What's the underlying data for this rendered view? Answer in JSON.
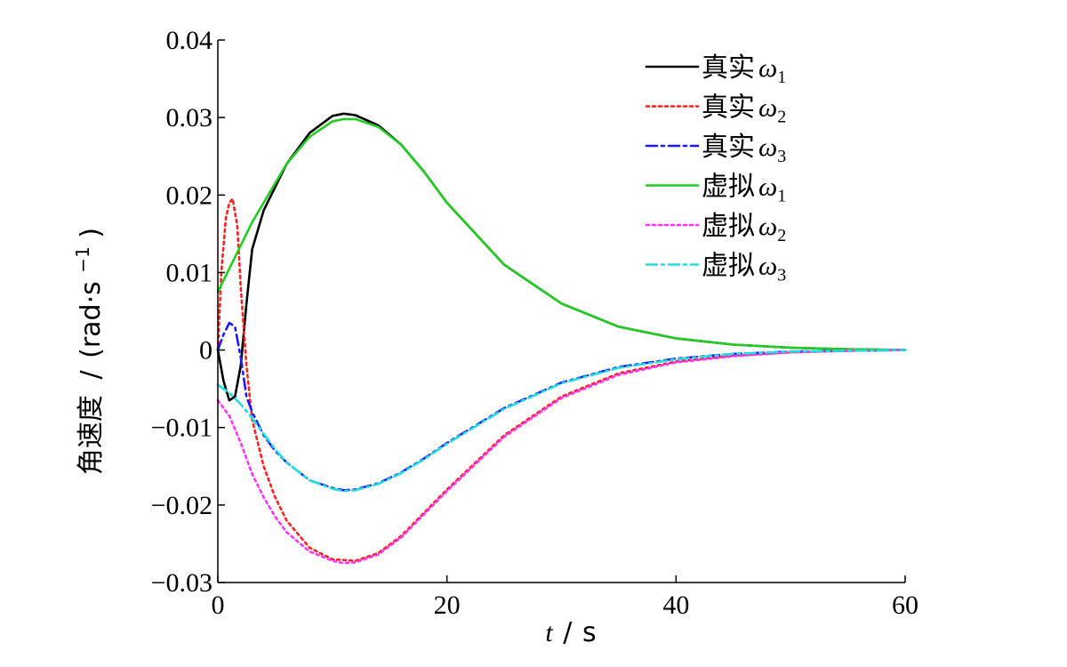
{
  "chart_data": {
    "type": "line",
    "xlabel": {
      "var": "t",
      "unit": "s"
    },
    "ylabel": {
      "main": "角速度",
      "unit": "(rad·s",
      "exp": "−1",
      "close": ")"
    },
    "xlim": [
      0,
      60
    ],
    "ylim": [
      -0.03,
      0.04
    ],
    "x_ticks": [
      0,
      20,
      40,
      60
    ],
    "x_tick_labels": [
      "0",
      "20",
      "40",
      "60"
    ],
    "y_ticks": [
      -0.03,
      -0.02,
      -0.01,
      0,
      0.01,
      0.02,
      0.03,
      0.04
    ],
    "y_tick_labels": [
      "−0.03",
      "−0.02",
      "−0.01",
      "0",
      "0.01",
      "0.02",
      "0.03",
      "0.04"
    ],
    "grid": false,
    "legend_position": "top-right",
    "series": [
      {
        "name": "真实",
        "symbol": "ω",
        "sub": "1",
        "color": "#000000",
        "dash": "solid",
        "x": [
          0,
          0.5,
          1,
          1.5,
          2,
          2.5,
          3,
          4,
          5,
          6,
          8,
          10,
          11,
          12,
          14,
          16,
          18,
          20,
          25,
          30,
          35,
          40,
          45,
          50,
          55,
          60
        ],
        "y": [
          0,
          -0.004,
          -0.0065,
          -0.006,
          -0.002,
          0.006,
          0.013,
          0.018,
          0.021,
          0.024,
          0.028,
          0.0302,
          0.0305,
          0.0303,
          0.029,
          0.0265,
          0.023,
          0.019,
          0.011,
          0.006,
          0.003,
          0.0015,
          0.0007,
          0.0003,
          0.0001,
          0.0
        ]
      },
      {
        "name": "真实",
        "symbol": "ω",
        "sub": "2",
        "color": "#ff2020",
        "dash": "dot",
        "x": [
          0,
          0.3,
          0.7,
          1,
          1.3,
          1.7,
          2,
          2.5,
          3,
          4,
          5,
          6,
          8,
          10,
          12,
          14,
          16,
          18,
          20,
          25,
          30,
          35,
          40,
          45,
          50,
          55,
          60
        ],
        "y": [
          0,
          0.01,
          0.017,
          0.019,
          0.0195,
          0.016,
          0.008,
          -0.002,
          -0.009,
          -0.015,
          -0.019,
          -0.022,
          -0.0255,
          -0.027,
          -0.0272,
          -0.0262,
          -0.024,
          -0.021,
          -0.018,
          -0.011,
          -0.006,
          -0.003,
          -0.0015,
          -0.0007,
          -0.0003,
          -0.0001,
          0.0
        ]
      },
      {
        "name": "真实",
        "symbol": "ω",
        "sub": "3",
        "color": "#1a1aff",
        "dash": "dashdot",
        "x": [
          0,
          0.5,
          1,
          1.5,
          2,
          2.5,
          3,
          4,
          5,
          6,
          8,
          10,
          11,
          12,
          14,
          16,
          18,
          20,
          25,
          30,
          35,
          40,
          45,
          50,
          55,
          60
        ],
        "y": [
          0,
          0.002,
          0.0035,
          0.003,
          -0.001,
          -0.006,
          -0.008,
          -0.011,
          -0.013,
          -0.0145,
          -0.0168,
          -0.0178,
          -0.0181,
          -0.018,
          -0.0172,
          -0.0158,
          -0.014,
          -0.012,
          -0.0075,
          -0.0042,
          -0.0022,
          -0.0011,
          -0.0005,
          -0.0002,
          -0.0001,
          0.0
        ]
      },
      {
        "name": "虚拟",
        "symbol": "ω",
        "sub": "1",
        "color": "#22cc22",
        "dash": "solid",
        "x": [
          0,
          1,
          2,
          3,
          4,
          5,
          6,
          8,
          10,
          11,
          12,
          14,
          16,
          18,
          20,
          25,
          30,
          35,
          40,
          45,
          50,
          55,
          60
        ],
        "y": [
          0.0075,
          0.0105,
          0.0135,
          0.0165,
          0.019,
          0.0215,
          0.024,
          0.0275,
          0.0295,
          0.0298,
          0.0298,
          0.0288,
          0.0265,
          0.023,
          0.019,
          0.011,
          0.006,
          0.003,
          0.0015,
          0.0007,
          0.0003,
          0.0001,
          0.0
        ]
      },
      {
        "name": "虚拟",
        "symbol": "ω",
        "sub": "2",
        "color": "#ff33ff",
        "dash": "dot",
        "x": [
          0,
          1,
          2,
          3,
          4,
          5,
          6,
          8,
          10,
          11,
          12,
          14,
          16,
          18,
          20,
          25,
          30,
          35,
          40,
          45,
          50,
          55,
          60
        ],
        "y": [
          -0.0065,
          -0.0085,
          -0.012,
          -0.016,
          -0.019,
          -0.0215,
          -0.0235,
          -0.026,
          -0.0272,
          -0.0275,
          -0.0274,
          -0.0264,
          -0.0242,
          -0.0212,
          -0.0182,
          -0.0112,
          -0.0062,
          -0.0032,
          -0.0016,
          -0.0008,
          -0.0003,
          -0.0001,
          0.0
        ]
      },
      {
        "name": "虚拟",
        "symbol": "ω",
        "sub": "3",
        "color": "#22dddd",
        "dash": "dashdot",
        "x": [
          0,
          1,
          2,
          3,
          4,
          5,
          6,
          8,
          10,
          11,
          12,
          14,
          16,
          18,
          20,
          25,
          30,
          35,
          40,
          45,
          50,
          55,
          60
        ],
        "y": [
          -0.0045,
          -0.0055,
          -0.007,
          -0.0088,
          -0.0108,
          -0.0128,
          -0.0145,
          -0.0168,
          -0.0179,
          -0.0182,
          -0.0181,
          -0.0173,
          -0.0159,
          -0.0141,
          -0.0121,
          -0.0076,
          -0.0043,
          -0.0023,
          -0.0012,
          -0.0005,
          -0.0002,
          -0.0001,
          0.0
        ]
      }
    ]
  }
}
